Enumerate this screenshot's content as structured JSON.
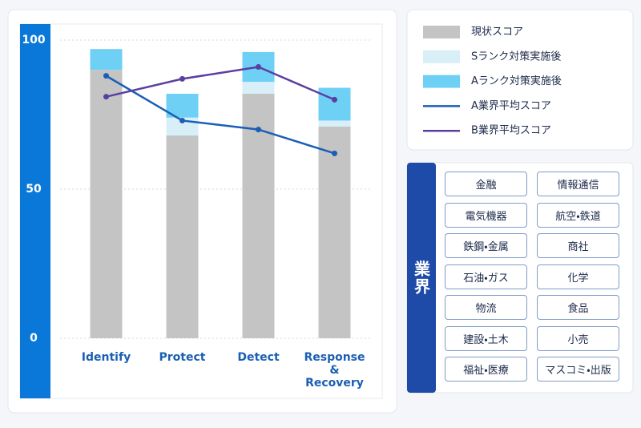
{
  "chart_data": {
    "type": "bar",
    "categories": [
      "Identify",
      "Protect",
      "Detect",
      "Response\n&\nRecovery"
    ],
    "series": [
      {
        "name": "現状スコア",
        "type": "bar",
        "color": "#c4c4c4",
        "values": [
          90,
          68,
          82,
          71
        ]
      },
      {
        "name": "Sランク対策実施後",
        "type": "bar",
        "color": "#d8eff8",
        "values": [
          0,
          6,
          4,
          2
        ]
      },
      {
        "name": "Aランク対策実施後",
        "type": "bar",
        "color": "#6fd0f6",
        "values": [
          7,
          8,
          10,
          11
        ]
      },
      {
        "name": "A業界平均スコア",
        "type": "line",
        "color": "#1a5fb4",
        "values": [
          88,
          73,
          70,
          62
        ]
      },
      {
        "name": "B業界平均スコア",
        "type": "line",
        "color": "#5b3fa0",
        "values": [
          81,
          87,
          91,
          80
        ]
      }
    ],
    "ylim": [
      0,
      100
    ],
    "yticks": [
      0,
      50,
      100
    ],
    "grid": true,
    "stacked": true
  },
  "industry_panel": {
    "title": "業界",
    "items": [
      "金融",
      "情報通信",
      "電気機器",
      "航空・鉄道",
      "鉄鋼・金属",
      "商社",
      "石油・ガス",
      "化学",
      "物流",
      "食品",
      "建設・土木",
      "小売",
      "福祉・医療",
      "マスコミ・出版"
    ]
  }
}
